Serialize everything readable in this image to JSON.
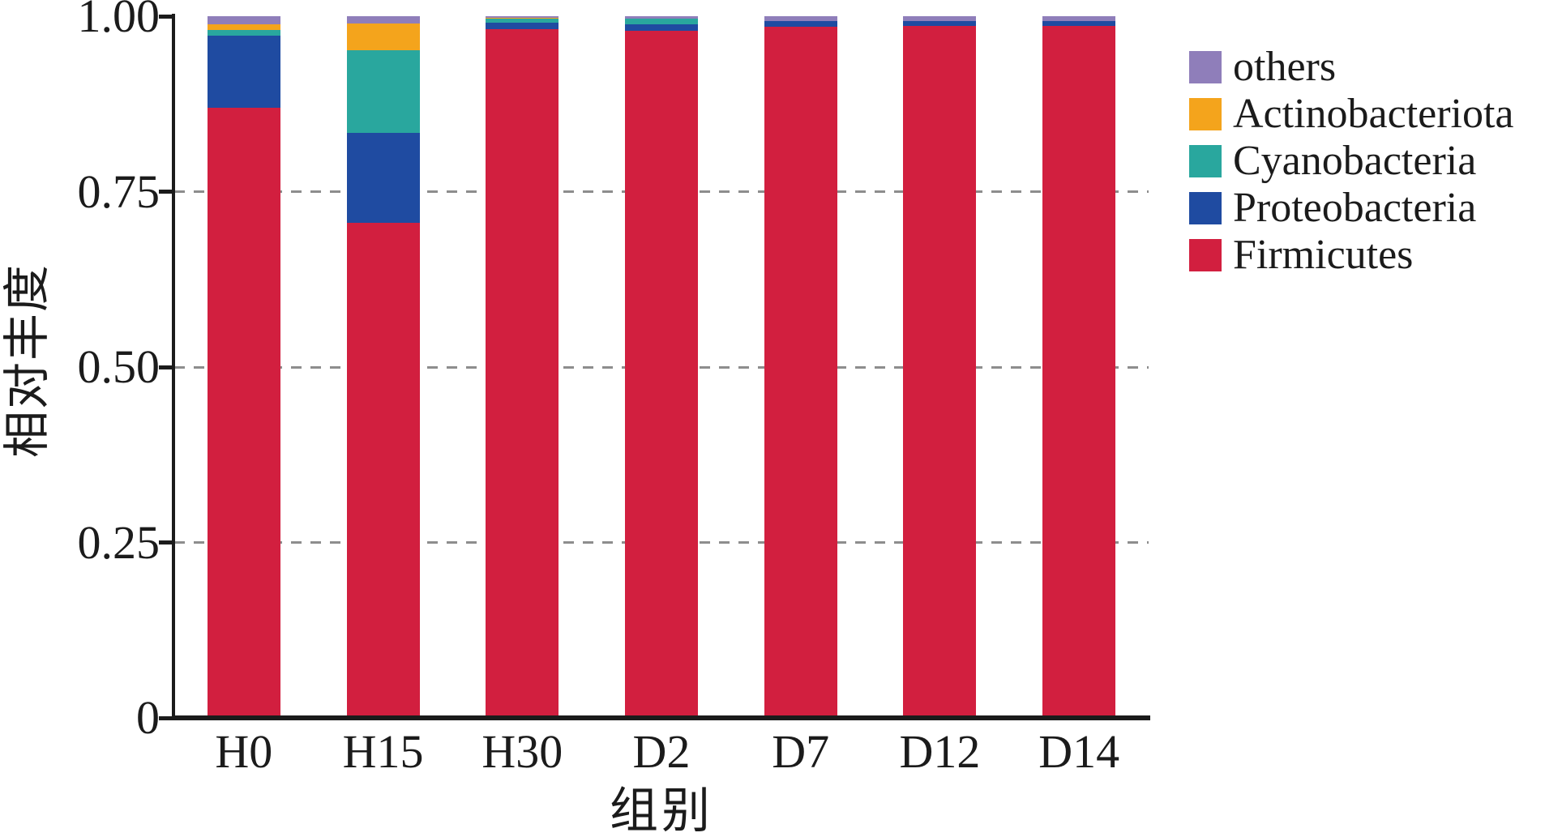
{
  "figure": {
    "background": "#ffffff",
    "text_color": "#1b1b1b"
  },
  "chart_data": {
    "type": "bar",
    "stacked": true,
    "orientation": "vertical",
    "title": "",
    "xlabel": "组别",
    "ylabel": "相对丰度",
    "categories": [
      "H0",
      "H15",
      "H30",
      "D2",
      "D7",
      "D12",
      "D14"
    ],
    "series": [
      {
        "name": "Firmicutes",
        "color": "#d21f3f",
        "values": [
          0.87,
          0.705,
          0.981,
          0.979,
          0.985,
          0.986,
          0.986
        ]
      },
      {
        "name": "Proteobacteria",
        "color": "#1f4ba1",
        "values": [
          0.102,
          0.129,
          0.01,
          0.01,
          0.008,
          0.007,
          0.007
        ]
      },
      {
        "name": "Cyanobacteria",
        "color": "#29a79e",
        "values": [
          0.008,
          0.118,
          0.006,
          0.008,
          0.0,
          0.0,
          0.0
        ]
      },
      {
        "name": "Actinobacteriota",
        "color": "#f4a41c",
        "values": [
          0.009,
          0.038,
          0.001,
          0.0,
          0.0,
          0.0,
          0.0
        ]
      },
      {
        "name": "others",
        "color": "#8f7eba",
        "values": [
          0.011,
          0.01,
          0.002,
          0.003,
          0.007,
          0.007,
          0.007
        ]
      }
    ],
    "stack_order_bottom_to_top": [
      "Firmicutes",
      "Proteobacteria",
      "Cyanobacteria",
      "Actinobacteriota",
      "others"
    ],
    "legend": {
      "position": "right-top",
      "order_top_to_bottom": [
        "others",
        "Actinobacteriota",
        "Cyanobacteria",
        "Proteobacteria",
        "Firmicutes"
      ]
    },
    "y_axis": {
      "min": 0,
      "max": 1,
      "ticks": [
        {
          "v": 0,
          "label": "0"
        },
        {
          "v": 0.25,
          "label": "0.25"
        },
        {
          "v": 0.5,
          "label": "0.50"
        },
        {
          "v": 0.75,
          "label": "0.75"
        },
        {
          "v": 1,
          "label": "1.00"
        }
      ],
      "gridlines_at": [
        0.25,
        0.5,
        0.75
      ],
      "gridline_style": "dashed",
      "gridline_color": "#8d8d8d"
    },
    "axis_color": "#1b1b1b"
  }
}
